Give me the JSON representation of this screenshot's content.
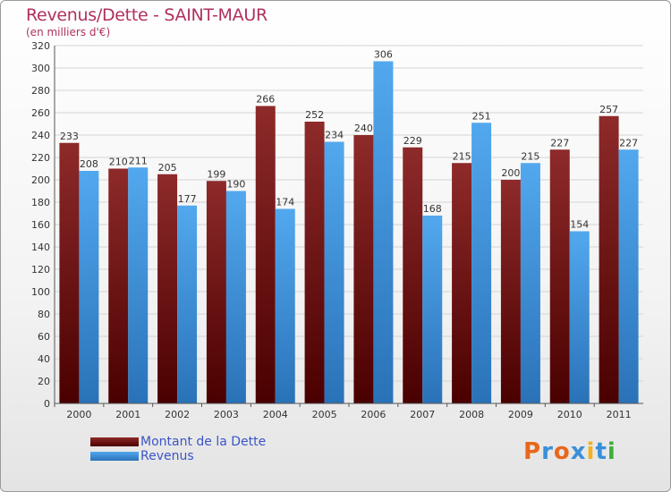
{
  "title": "Revenus/Dette - SAINT-MAUR",
  "subtitle": "(en milliers d'€)",
  "colors": {
    "dette": "#7a1c1c",
    "revenus": "#3a8fd8",
    "title": "#b03060"
  },
  "legend": {
    "dette_label": "Montant de la Dette",
    "revenus_label": "Revenus"
  },
  "logo": {
    "letters": [
      "P",
      "r",
      "o",
      "x",
      "i",
      "t",
      "i"
    ],
    "colors": [
      "#e8671b",
      "#3a8fd8",
      "#e8671b",
      "#3a8fd8",
      "#f3b21b",
      "#3a8fd8",
      "#3ab03a"
    ]
  },
  "chart_data": {
    "type": "bar",
    "categories": [
      "2000",
      "2001",
      "2002",
      "2003",
      "2004",
      "2005",
      "2006",
      "2007",
      "2008",
      "2009",
      "2010",
      "2011"
    ],
    "series": [
      {
        "name": "Montant de la Dette",
        "values": [
          233,
          210,
          205,
          199,
          266,
          252,
          240,
          229,
          215,
          200,
          227,
          257
        ]
      },
      {
        "name": "Revenus",
        "values": [
          208,
          211,
          177,
          190,
          174,
          234,
          306,
          168,
          251,
          215,
          154,
          227
        ]
      }
    ],
    "ylim": [
      0,
      320
    ],
    "yticks": [
      0,
      20,
      40,
      60,
      80,
      100,
      120,
      140,
      160,
      180,
      200,
      220,
      240,
      260,
      280,
      300,
      320
    ],
    "grid": true,
    "legend_position": "bottom-left"
  }
}
